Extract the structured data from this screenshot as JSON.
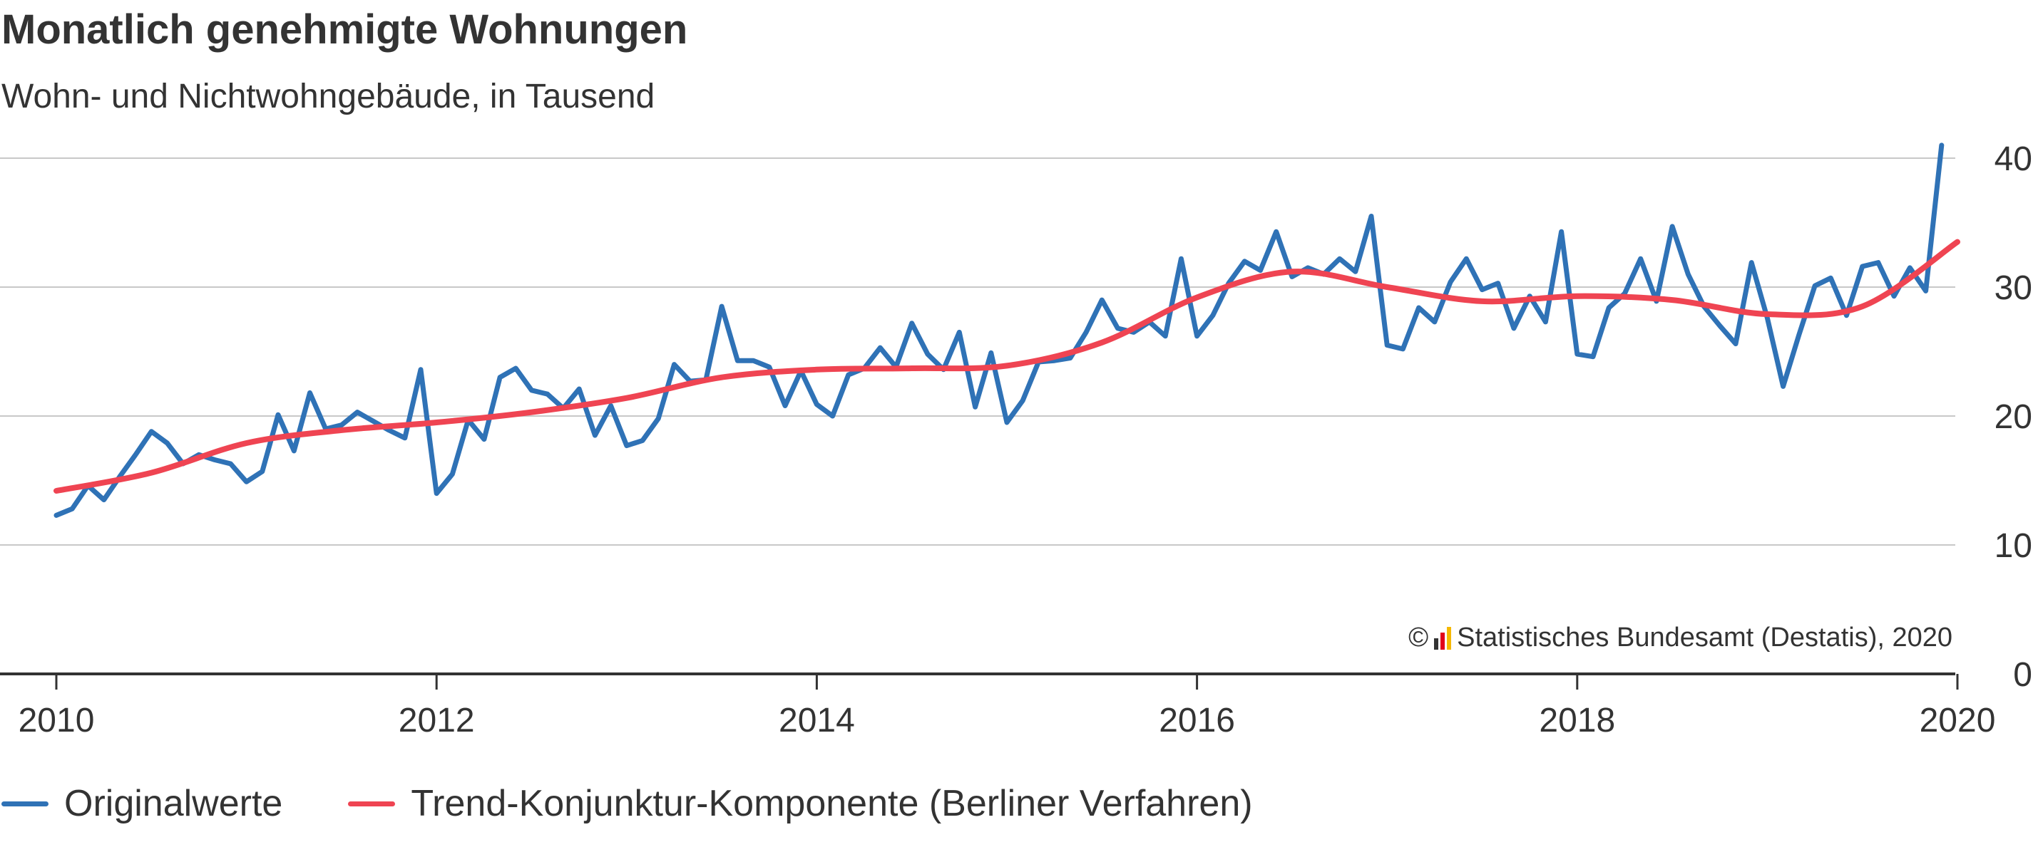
{
  "colors": {
    "original": "#2f72b6",
    "trend": "#ef4452",
    "grid": "#c8c8c8",
    "axis": "#333333",
    "text": "#333333"
  },
  "source": {
    "symbol": "©",
    "logo": "destatis-logo-icon",
    "text": "Statistisches Bundesamt (Destatis), 2020"
  },
  "chart_data": {
    "type": "line",
    "title": "Monatlich genehmigte Wohnungen",
    "subtitle": "Wohn- und Nichtwohngebäude, in Tausend",
    "xlabel": "",
    "ylabel": "",
    "xlim": [
      "2010-01",
      "2020-01"
    ],
    "ylim": [
      0,
      40
    ],
    "xticks": [
      "2010",
      "2012",
      "2014",
      "2016",
      "2018",
      "2020"
    ],
    "yticks": [
      0,
      10,
      20,
      30,
      40
    ],
    "grid": "horizontal",
    "legend_position": "bottom-left",
    "series": [
      {
        "name": "Originalwerte",
        "color": "#2f72b6",
        "x": [
          "2010-01",
          "2010-02",
          "2010-03",
          "2010-04",
          "2010-05",
          "2010-06",
          "2010-07",
          "2010-08",
          "2010-09",
          "2010-10",
          "2010-11",
          "2010-12",
          "2011-01",
          "2011-02",
          "2011-03",
          "2011-04",
          "2011-05",
          "2011-06",
          "2011-07",
          "2011-08",
          "2011-09",
          "2011-10",
          "2011-11",
          "2011-12",
          "2012-01",
          "2012-02",
          "2012-03",
          "2012-04",
          "2012-05",
          "2012-06",
          "2012-07",
          "2012-08",
          "2012-09",
          "2012-10",
          "2012-11",
          "2012-12",
          "2013-01",
          "2013-02",
          "2013-03",
          "2013-04",
          "2013-05",
          "2013-06",
          "2013-07",
          "2013-08",
          "2013-09",
          "2013-10",
          "2013-11",
          "2013-12",
          "2014-01",
          "2014-02",
          "2014-03",
          "2014-04",
          "2014-05",
          "2014-06",
          "2014-07",
          "2014-08",
          "2014-09",
          "2014-10",
          "2014-11",
          "2014-12",
          "2015-01",
          "2015-02",
          "2015-03",
          "2015-04",
          "2015-05",
          "2015-06",
          "2015-07",
          "2015-08",
          "2015-09",
          "2015-10",
          "2015-11",
          "2015-12",
          "2016-01",
          "2016-02",
          "2016-03",
          "2016-04",
          "2016-05",
          "2016-06",
          "2016-07",
          "2016-08",
          "2016-09",
          "2016-10",
          "2016-11",
          "2016-12",
          "2017-01",
          "2017-02",
          "2017-03",
          "2017-04",
          "2017-05",
          "2017-06",
          "2017-07",
          "2017-08",
          "2017-09",
          "2017-10",
          "2017-11",
          "2017-12",
          "2018-01",
          "2018-02",
          "2018-03",
          "2018-04",
          "2018-05",
          "2018-06",
          "2018-07",
          "2018-08",
          "2018-09",
          "2018-10",
          "2018-11",
          "2018-12",
          "2019-01",
          "2019-02",
          "2019-03",
          "2019-04",
          "2019-05",
          "2019-06",
          "2019-07",
          "2019-08",
          "2019-09",
          "2019-10",
          "2019-11",
          "2019-12"
        ],
        "values": [
          12.3,
          12.8,
          14.6,
          13.5,
          15.3,
          17.0,
          18.8,
          17.9,
          16.3,
          17.0,
          16.6,
          16.3,
          14.9,
          15.7,
          20.1,
          17.3,
          21.8,
          19.0,
          19.3,
          20.3,
          19.6,
          18.9,
          18.3,
          23.6,
          14.0,
          15.5,
          19.7,
          18.2,
          23.0,
          23.7,
          22.0,
          21.7,
          20.6,
          22.1,
          18.5,
          20.8,
          17.7,
          18.1,
          19.8,
          24.0,
          22.7,
          22.8,
          28.5,
          24.3,
          24.3,
          23.8,
          20.8,
          23.5,
          20.9,
          20.0,
          23.2,
          23.7,
          25.3,
          23.8,
          27.2,
          24.8,
          23.6,
          26.5,
          20.7,
          24.9,
          19.5,
          21.2,
          24.2,
          24.3,
          24.5,
          26.5,
          29.0,
          26.8,
          26.5,
          27.3,
          26.2,
          32.2,
          26.2,
          27.8,
          30.3,
          32.0,
          31.3,
          34.3,
          30.8,
          31.5,
          31.0,
          32.2,
          31.2,
          35.5,
          25.5,
          25.2,
          28.4,
          27.3,
          30.4,
          32.2,
          29.8,
          30.3,
          26.8,
          29.3,
          27.3,
          34.3,
          24.8,
          24.6,
          28.4,
          29.5,
          32.2,
          28.9,
          34.7,
          31.0,
          28.5,
          27.0,
          25.6,
          31.9,
          27.6,
          22.3,
          26.3,
          30.1,
          30.7,
          27.8,
          31.6,
          31.9,
          29.3,
          31.5,
          29.7,
          41.0
        ]
      },
      {
        "name": "Trend-Konjunktur-Komponente (Berliner Verfahren)",
        "color": "#ef4452",
        "x": [
          "2010-01",
          "2010-07",
          "2011-01",
          "2011-07",
          "2012-01",
          "2012-07",
          "2013-01",
          "2013-07",
          "2014-01",
          "2014-07",
          "2015-01",
          "2015-07",
          "2016-01",
          "2016-07",
          "2017-01",
          "2017-07",
          "2018-01",
          "2018-07",
          "2019-01",
          "2019-07",
          "2020-01"
        ],
        "values": [
          14.2,
          15.6,
          17.9,
          18.9,
          19.5,
          20.3,
          21.4,
          23.0,
          23.6,
          23.7,
          23.9,
          25.7,
          29.2,
          31.2,
          30.0,
          28.9,
          29.3,
          29.0,
          27.9,
          28.5,
          33.5
        ]
      }
    ]
  }
}
